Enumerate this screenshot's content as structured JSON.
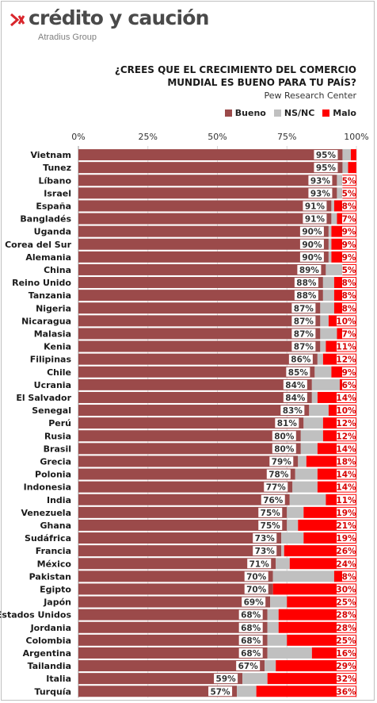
{
  "brand": {
    "name": "crédito y caución",
    "sub": "Atradius Group",
    "logo_color": "#d9262c"
  },
  "chart_data": {
    "type": "bar",
    "orientation": "horizontal",
    "stacked": true,
    "title_line1": "¿CREES QUE EL CRECIMIENTO DEL COMERCIO",
    "title_line2": "MUNDIAL ES BUENO PARA TU PAÍS?",
    "subtitle": "Pew Research Center",
    "xlim": [
      0,
      100
    ],
    "x_tick_labels": [
      "0%",
      "25%",
      "50%",
      "75%",
      "100%"
    ],
    "legend_position": "top-right",
    "grid": true,
    "categories": [
      "Vietnam",
      "Tunez",
      "Líbano",
      "Israel",
      "España",
      "Bangladés",
      "Uganda",
      "Corea del Sur",
      "Alemania",
      "China",
      "Reino Unido",
      "Tanzania",
      "Nigeria",
      "Nicaragua",
      "Malasia",
      "Kenia",
      "Filipinas",
      "Chile",
      "Ucrania",
      "El Salvador",
      "Senegal",
      "Perú",
      "Rusia",
      "Brasil",
      "Grecia",
      "Polonia",
      "Indonesia",
      "India",
      "Venezuela",
      "Ghana",
      "Sudáfrica",
      "Francia",
      "México",
      "Pakistan",
      "Egipto",
      "Japón",
      "Estados Unidos",
      "Jordania",
      "Colombia",
      "Argentina",
      "Tailandia",
      "Italia",
      "Turquía"
    ],
    "series": [
      {
        "name": "Bueno",
        "color": "#9b4a4a",
        "values": [
          95,
          95,
          93,
          93,
          91,
          91,
          90,
          90,
          90,
          89,
          88,
          88,
          87,
          87,
          87,
          87,
          86,
          85,
          84,
          84,
          83,
          81,
          80,
          80,
          79,
          78,
          77,
          76,
          75,
          75,
          73,
          73,
          71,
          70,
          70,
          69,
          68,
          68,
          68,
          68,
          67,
          59,
          57
        ]
      },
      {
        "name": "NS/NC",
        "color": "#c0c0c0",
        "values": [
          3,
          2,
          2,
          2,
          1,
          2,
          1,
          1,
          1,
          6,
          4,
          4,
          5,
          3,
          6,
          2,
          2,
          6,
          10,
          2,
          7,
          7,
          8,
          6,
          3,
          8,
          9,
          13,
          6,
          4,
          8,
          1,
          5,
          22,
          0,
          6,
          4,
          4,
          7,
          16,
          4,
          9,
          7
        ]
      },
      {
        "name": "Malo",
        "color": "#ff0000",
        "values": [
          2,
          3,
          5,
          5,
          8,
          7,
          9,
          9,
          9,
          5,
          8,
          8,
          8,
          10,
          7,
          11,
          12,
          9,
          6,
          14,
          10,
          12,
          12,
          14,
          18,
          14,
          14,
          11,
          19,
          21,
          19,
          26,
          24,
          8,
          30,
          25,
          28,
          28,
          25,
          16,
          29,
          32,
          36
        ]
      }
    ],
    "label_good": [
      "95%",
      "95%",
      "93%",
      "93%",
      "91%",
      "91%",
      "90%",
      "90%",
      "90%",
      "89%",
      "88%",
      "88%",
      "87%",
      "87%",
      "87%",
      "87%",
      "86%",
      "85%",
      "84%",
      "84%",
      "83%",
      "81%",
      "80%",
      "80%",
      "79%",
      "78%",
      "77%",
      "76%",
      "75%",
      "75%",
      "73%",
      "73%",
      "71%",
      "70%",
      "70%",
      "69%",
      "68%",
      "68%",
      "68%",
      "68%",
      "67%",
      "59%",
      "57%"
    ],
    "label_bad": [
      "",
      "",
      "5%",
      "5%",
      "8%",
      "7%",
      "9%",
      "9%",
      "9%",
      "5%",
      "8%",
      "8%",
      "8%",
      "10%",
      "7%",
      "11%",
      "12%",
      "9%",
      "6%",
      "14%",
      "10%",
      "12%",
      "12%",
      "14%",
      "18%",
      "14%",
      "14%",
      "11%",
      "19%",
      "21%",
      "19%",
      "26%",
      "24%",
      "8%",
      "30%",
      "25%",
      "28%",
      "28%",
      "25%",
      "16%",
      "29%",
      "32%",
      "36%"
    ]
  }
}
